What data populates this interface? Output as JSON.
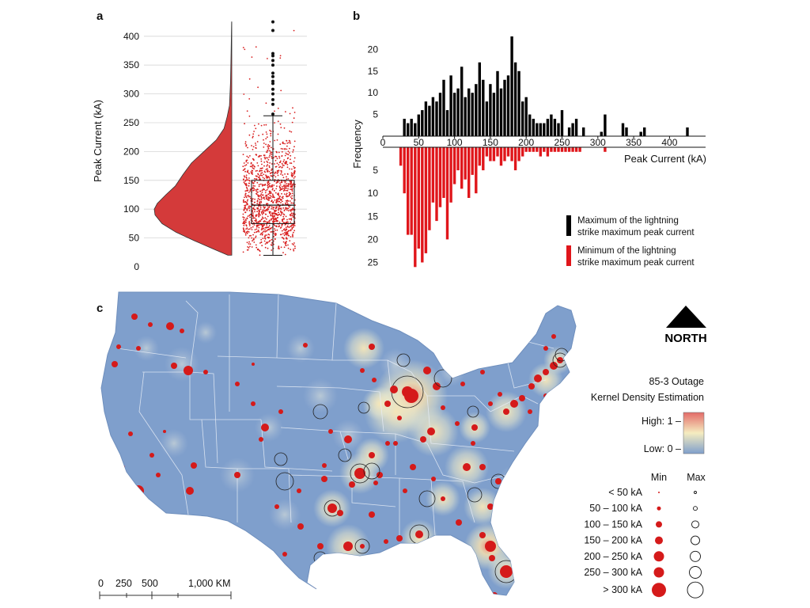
{
  "colors": {
    "violin": "#d43a3a",
    "violin_edge": "#333333",
    "jitter": "#d81e1e",
    "outlier": "#111111",
    "max_bar": "#000000",
    "min_bar": "#e0161b",
    "land": "#7f9fcc",
    "kde_low": "#7f9fcc",
    "kde_mid": "#f6efc2",
    "kde_high": "#e57a72",
    "min_dot": "#d51a1a",
    "max_ring": "#222222"
  },
  "panel_a": {
    "label": "a",
    "ylabel": "Peak Current (kA)",
    "yticks": [
      0,
      50,
      100,
      150,
      200,
      250,
      300,
      350,
      400
    ]
  },
  "panel_b": {
    "label": "b",
    "ylabel": "Frequency",
    "xlabel": "Peak Current (kA)",
    "xticks": [
      0,
      50,
      100,
      150,
      200,
      250,
      300,
      350,
      400
    ],
    "upper_ticks": [
      5,
      10,
      15,
      20
    ],
    "lower_ticks": [
      5,
      10,
      15,
      20,
      25
    ],
    "legend_max": [
      "Maximum of the lightning",
      "strike maximum peak current"
    ],
    "legend_min": [
      "Minimum of the lightning",
      "strike maximum peak current"
    ]
  },
  "panel_c": {
    "label": "c",
    "north": "NORTH",
    "title_line1": "85-3 Outage",
    "title_line2": "Kernel Density Estimation",
    "high_label": "High: 1 –",
    "low_label": "Low:  0 –",
    "min_header": "Min",
    "max_header": "Max",
    "size_classes": [
      "< 50 kA",
      "50 – 100 kA",
      "100 – 150 kA",
      "150 – 200 kA",
      "200 – 250 kA",
      "250 – 300 kA",
      "> 300 kA"
    ],
    "scale_labels": [
      "0",
      "250",
      "500",
      "1,000 KM"
    ]
  },
  "chart_data": [
    {
      "type": "violin-box",
      "title": "a",
      "xlabel": "",
      "ylabel": "Peak Current (kA)",
      "ylim": [
        0,
        420
      ],
      "box": {
        "min": 20,
        "q1": 75,
        "median": 107,
        "q3": 150,
        "max": 262
      },
      "outliers": [
        265,
        282,
        290,
        300,
        308,
        318,
        322,
        330,
        336,
        350,
        358,
        366,
        370,
        410,
        425
      ],
      "density": [
        [
          20,
          0.05
        ],
        [
          30,
          0.22
        ],
        [
          45,
          0.48
        ],
        [
          60,
          0.72
        ],
        [
          75,
          0.9
        ],
        [
          90,
          0.99
        ],
        [
          100,
          1.0
        ],
        [
          110,
          0.96
        ],
        [
          125,
          0.85
        ],
        [
          140,
          0.73
        ],
        [
          160,
          0.63
        ],
        [
          180,
          0.52
        ],
        [
          200,
          0.36
        ],
        [
          220,
          0.2
        ],
        [
          240,
          0.1
        ],
        [
          260,
          0.06
        ],
        [
          280,
          0.03
        ],
        [
          320,
          0.016
        ],
        [
          360,
          0.01
        ],
        [
          400,
          0.005
        ],
        [
          425,
          0.002
        ]
      ]
    },
    {
      "type": "bar",
      "title": "b",
      "xlabel": "Peak Current (kA)",
      "ylabel": "Frequency",
      "xlim": [
        0,
        440
      ],
      "bin_width": 5,
      "series": [
        {
          "name": "Maximum of the lightning strike maximum peak current",
          "x": [
            30,
            35,
            40,
            45,
            50,
            55,
            60,
            65,
            70,
            75,
            80,
            85,
            90,
            95,
            100,
            105,
            110,
            115,
            120,
            125,
            130,
            135,
            140,
            145,
            150,
            155,
            160,
            165,
            170,
            175,
            180,
            185,
            190,
            195,
            200,
            205,
            210,
            215,
            220,
            225,
            230,
            235,
            240,
            245,
            250,
            260,
            265,
            270,
            280,
            305,
            310,
            335,
            340,
            360,
            365,
            425
          ],
          "values": [
            4,
            3,
            4,
            3,
            5,
            6,
            8,
            7,
            9,
            8,
            10,
            13,
            6,
            14,
            10,
            11,
            16,
            9,
            11,
            10,
            12,
            17,
            13,
            8,
            12,
            10,
            15,
            11,
            13,
            14,
            23,
            17,
            15,
            8,
            9,
            5,
            4,
            3,
            3,
            3,
            4,
            5,
            4,
            3,
            6,
            2,
            3,
            4,
            2,
            1,
            5,
            3,
            2,
            1,
            2,
            2
          ]
        },
        {
          "name": "Minimum of the lightning strike maximum peak current",
          "x": [
            25,
            30,
            35,
            40,
            45,
            50,
            55,
            60,
            65,
            70,
            75,
            80,
            85,
            90,
            95,
            100,
            105,
            110,
            115,
            120,
            125,
            130,
            135,
            140,
            145,
            150,
            155,
            160,
            165,
            170,
            175,
            180,
            185,
            190,
            195,
            200,
            205,
            210,
            215,
            220,
            225,
            230,
            235,
            240,
            245,
            250,
            255,
            260,
            265,
            270,
            275,
            310
          ],
          "values": [
            4,
            10,
            19,
            19,
            26,
            22,
            25,
            23,
            18,
            12,
            16,
            13,
            11,
            20,
            12,
            8,
            5,
            9,
            7,
            11,
            6,
            10,
            4,
            5,
            2,
            3,
            3,
            2,
            4,
            3,
            2,
            3,
            5,
            3,
            2,
            1,
            1,
            1,
            1,
            2,
            1,
            2,
            1,
            1,
            1,
            1,
            1,
            1,
            1,
            1,
            1,
            1
          ]
        }
      ]
    },
    {
      "type": "map",
      "title": "85-3 Outage Kernel Density Estimation",
      "legend": [
        "< 50 kA",
        "50 – 100 kA",
        "100 – 150 kA",
        "150 – 200 kA",
        "200 – 250 kA",
        "250 – 300 kA",
        "> 300 kA"
      ],
      "kde_range": [
        0,
        1
      ]
    }
  ]
}
